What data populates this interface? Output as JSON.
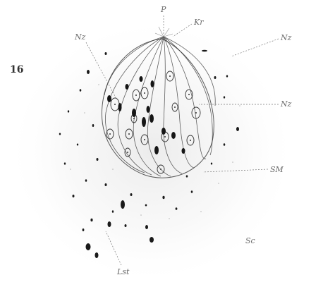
{
  "figure": {
    "number": "16",
    "labels": {
      "p": "P",
      "kr": "Kr",
      "nz_top_left": "Nz",
      "nz_top_right": "Nz",
      "nz_right": "Nz",
      "sm": "SM",
      "sc": "Sc",
      "lst": "Lst"
    }
  },
  "colors": {
    "ink": "#1a1a1a",
    "wash": "#eeeeee",
    "label": "#6a6a6a"
  }
}
